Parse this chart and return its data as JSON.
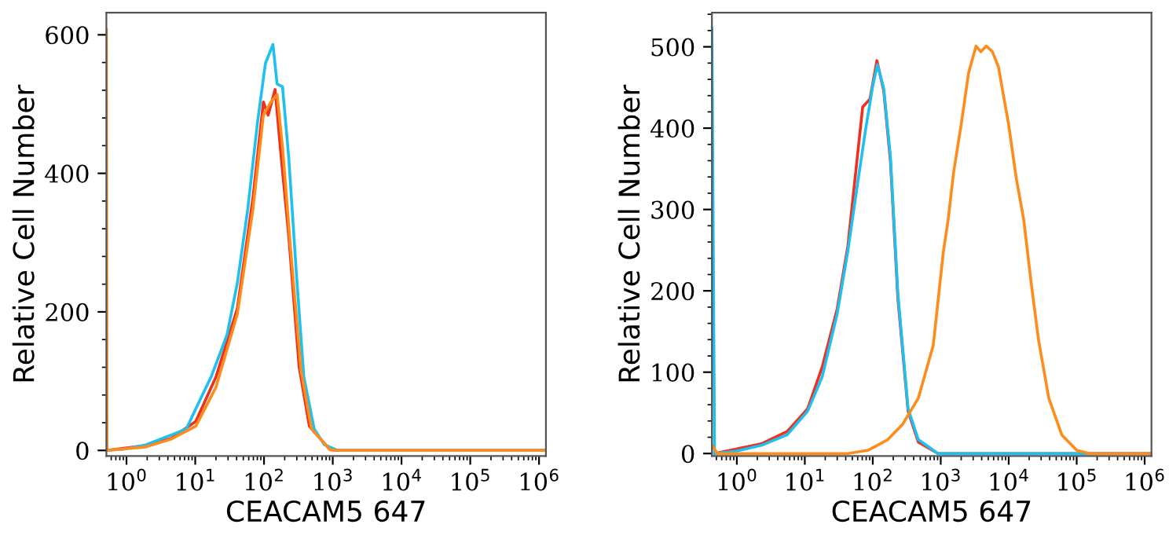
{
  "chart_data": [
    {
      "type": "line",
      "xlabel": "CEACAM5 647",
      "ylabel": "Relative Cell Number",
      "log": "x",
      "grid": false,
      "marker": "none",
      "line_style": "solid",
      "xlim": [
        0.51,
        1260000
      ],
      "ylim": [
        -8,
        632
      ],
      "xticks": [
        {
          "value": 1,
          "label": "10$^{0}$"
        },
        {
          "value": 10,
          "label": "10$^{1}$"
        },
        {
          "value": 100,
          "label": "10$^{2}$"
        },
        {
          "value": 1000,
          "label": "10$^{3}$"
        },
        {
          "value": 10000,
          "label": "10$^{4}$"
        },
        {
          "value": 100000,
          "label": "10$^{5}$"
        },
        {
          "value": 1000000,
          "label": "10$^{6}$"
        }
      ],
      "yticks": [
        0,
        200,
        400,
        600
      ],
      "series": [
        {
          "color": "#f0301e",
          "x": [
            0.51,
            1.9,
            4.4,
            10.2,
            20,
            41,
            69,
            98,
            115,
            145,
            178,
            229,
            324,
            457,
            912,
            1259,
            1260000
          ],
          "values": [
            0,
            7,
            17,
            42,
            106,
            205,
            364,
            503,
            484,
            521,
            423,
            310,
            121,
            35,
            1,
            0,
            0
          ]
        },
        {
          "color": "#1ec0f0",
          "x": [
            0.51,
            0.93,
            1.9,
            4.4,
            7.4,
            12,
            17,
            29,
            41,
            58,
            81,
            105,
            135,
            155,
            186,
            229,
            295,
            380,
            537,
            759,
            1175,
            1260000
          ],
          "values": [
            0,
            2,
            8,
            22,
            31,
            75,
            106,
            167,
            242,
            348,
            476,
            559,
            586,
            529,
            525,
            423,
            257,
            106,
            31,
            8,
            0,
            0
          ]
        },
        {
          "color": "#ff8c1a",
          "x": [
            0.51,
            0.52,
            1.9,
            4.4,
            10.2,
            20,
            41,
            69,
            98,
            126,
            155,
            186,
            245,
            347,
            490,
            912,
            1259,
            1260000
          ],
          "values": [
            608,
            0,
            5,
            16,
            35,
            91,
            197,
            348,
            484,
            503,
            514,
            438,
            288,
            114,
            31,
            1,
            0,
            0
          ]
        }
      ]
    },
    {
      "type": "line",
      "xlabel": "CEACAM5 647",
      "ylabel": "Relative Cell Number",
      "log": "x",
      "grid": false,
      "marker": "none",
      "line_style": "solid",
      "xlim": [
        0.43,
        1260000
      ],
      "ylim": [
        -3,
        542
      ],
      "xticks": [
        {
          "value": 1,
          "label": "10$^{0}$"
        },
        {
          "value": 10,
          "label": "10$^{1}$"
        },
        {
          "value": 100,
          "label": "10$^{2}$"
        },
        {
          "value": 1000,
          "label": "10$^{3}$"
        },
        {
          "value": 10000,
          "label": "10$^{4}$"
        },
        {
          "value": 100000,
          "label": "10$^{5}$"
        },
        {
          "value": 1000000,
          "label": "10$^{6}$"
        }
      ],
      "yticks": [
        0,
        100,
        200,
        300,
        400,
        500
      ],
      "series": [
        {
          "color": "#f0301e",
          "x": [
            0.47,
            2.3,
            5.5,
            11,
            18,
            30,
            43,
            71,
            91,
            115,
            145,
            182,
            234,
            331,
            468,
            912,
            1260000
          ],
          "values": [
            0,
            12,
            27,
            55,
            106,
            178,
            255,
            426,
            436,
            483,
            446,
            359,
            191,
            52,
            14,
            0,
            0
          ]
        },
        {
          "color": "#1ec0f0",
          "x": [
            0.43,
            0.47,
            1,
            2.3,
            5.5,
            11,
            18,
            30,
            43,
            60,
            78,
            100,
            117,
            145,
            182,
            234,
            331,
            468,
            912,
            1260000
          ],
          "values": [
            523,
            0,
            3,
            10,
            23,
            52,
            94,
            172,
            249,
            333,
            397,
            452,
            478,
            449,
            365,
            197,
            55,
            17,
            0,
            0
          ]
        },
        {
          "color": "#ff8c1a",
          "x": [
            0.43,
            0.52,
            43,
            85,
            166,
            275,
            468,
            776,
            1096,
            1288,
            1549,
            1995,
            2570,
            3311,
            3890,
            4677,
            5754,
            7079,
            10000,
            12882,
            16596,
            21380,
            27542,
            38905,
            60256,
            100000,
            154882,
            1260000
          ],
          "values": [
            10,
            0,
            0,
            4,
            17,
            36,
            68,
            133,
            249,
            288,
            346,
            404,
            468,
            501,
            494,
            501,
            494,
            475,
            404,
            339,
            288,
            210,
            139,
            68,
            23,
            4,
            0,
            0
          ]
        }
      ]
    }
  ]
}
